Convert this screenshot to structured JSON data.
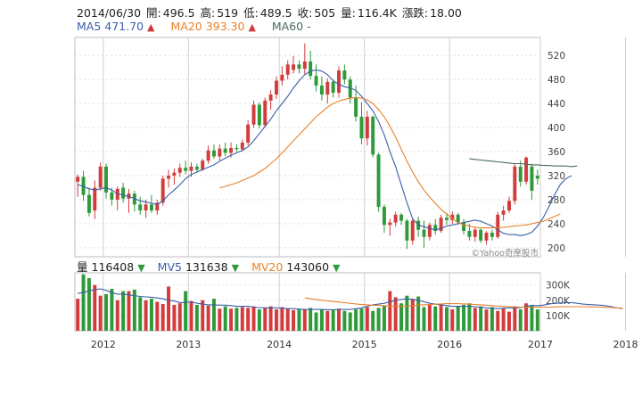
{
  "header": {
    "date": "2014/06/30",
    "open_label": "開:",
    "open": "496.5",
    "high_label": "高:",
    "high": "519",
    "low_label": "低:",
    "low": "489.5",
    "close_label": "收:",
    "close": "505",
    "volume_label": "量:",
    "volume": "116.4K",
    "change_label": "漲跌:",
    "change": "18.00"
  },
  "ma_legend": [
    {
      "name": "MA5",
      "value": "471.70",
      "arrow": "▲",
      "color": "#3a5fa8"
    },
    {
      "name": "MA20",
      "value": "393.30",
      "arrow": "▲",
      "color": "#e8812a"
    },
    {
      "name": "MA60",
      "value": "-",
      "arrow": "",
      "color": "#4a6a5a"
    }
  ],
  "vol_legend": [
    {
      "name": "量",
      "value": "116408",
      "arrow": "▼",
      "color": "#222"
    },
    {
      "name": "MV5",
      "value": "131638",
      "arrow": "▼",
      "color": "#3a5fa8"
    },
    {
      "name": "MV20",
      "value": "143060",
      "arrow": "▼",
      "color": "#e8812a"
    }
  ],
  "watermark": "©Yahoo奇摩股市",
  "colors": {
    "up": "#d23c3c",
    "down": "#2e9a3a",
    "ma5": "#3a5fa8",
    "ma20": "#e8812a",
    "ma60": "#4a6a5a",
    "grid": "#cfcfcf"
  },
  "chart_data": {
    "type": "candlestick",
    "price_axis": {
      "ticks": [
        200,
        240,
        280,
        320,
        360,
        400,
        440,
        480,
        520
      ],
      "ylim": [
        185,
        550
      ]
    },
    "volume_axis": {
      "ticks": [
        "100K",
        "200K",
        "300K"
      ],
      "tick_values": [
        100,
        200,
        300
      ],
      "ylim": [
        0,
        380
      ]
    },
    "x_labels": [
      "2012",
      "2013",
      "2014",
      "2015",
      "2016",
      "2017",
      "2018"
    ],
    "x_label_index": [
      5,
      20,
      36,
      51,
      66,
      82,
      97
    ],
    "candles": [
      {
        "o": 310,
        "h": 322,
        "l": 285,
        "c": 318
      },
      {
        "o": 318,
        "h": 328,
        "l": 278,
        "c": 288
      },
      {
        "o": 288,
        "h": 300,
        "l": 252,
        "c": 258
      },
      {
        "o": 262,
        "h": 312,
        "l": 248,
        "c": 300
      },
      {
        "o": 300,
        "h": 342,
        "l": 295,
        "c": 335
      },
      {
        "o": 335,
        "h": 340,
        "l": 282,
        "c": 292
      },
      {
        "o": 292,
        "h": 300,
        "l": 270,
        "c": 280
      },
      {
        "o": 280,
        "h": 302,
        "l": 262,
        "c": 298
      },
      {
        "o": 300,
        "h": 308,
        "l": 275,
        "c": 282
      },
      {
        "o": 282,
        "h": 298,
        "l": 258,
        "c": 290
      },
      {
        "o": 290,
        "h": 295,
        "l": 260,
        "c": 272
      },
      {
        "o": 272,
        "h": 285,
        "l": 255,
        "c": 262
      },
      {
        "o": 262,
        "h": 280,
        "l": 250,
        "c": 272
      },
      {
        "o": 272,
        "h": 288,
        "l": 258,
        "c": 262
      },
      {
        "o": 262,
        "h": 280,
        "l": 255,
        "c": 275
      },
      {
        "o": 275,
        "h": 320,
        "l": 270,
        "c": 315
      },
      {
        "o": 315,
        "h": 330,
        "l": 300,
        "c": 320
      },
      {
        "o": 320,
        "h": 332,
        "l": 305,
        "c": 325
      },
      {
        "o": 325,
        "h": 340,
        "l": 318,
        "c": 333
      },
      {
        "o": 333,
        "h": 345,
        "l": 322,
        "c": 328
      },
      {
        "o": 328,
        "h": 342,
        "l": 318,
        "c": 335
      },
      {
        "o": 335,
        "h": 340,
        "l": 325,
        "c": 330
      },
      {
        "o": 330,
        "h": 348,
        "l": 328,
        "c": 345
      },
      {
        "o": 345,
        "h": 370,
        "l": 340,
        "c": 362
      },
      {
        "o": 362,
        "h": 372,
        "l": 348,
        "c": 352
      },
      {
        "o": 352,
        "h": 372,
        "l": 345,
        "c": 365
      },
      {
        "o": 365,
        "h": 375,
        "l": 352,
        "c": 358
      },
      {
        "o": 358,
        "h": 375,
        "l": 350,
        "c": 366
      },
      {
        "o": 366,
        "h": 372,
        "l": 360,
        "c": 364
      },
      {
        "o": 364,
        "h": 380,
        "l": 360,
        "c": 375
      },
      {
        "o": 375,
        "h": 412,
        "l": 370,
        "c": 405
      },
      {
        "o": 405,
        "h": 445,
        "l": 400,
        "c": 438
      },
      {
        "o": 438,
        "h": 442,
        "l": 398,
        "c": 404
      },
      {
        "o": 404,
        "h": 450,
        "l": 400,
        "c": 445
      },
      {
        "o": 445,
        "h": 462,
        "l": 430,
        "c": 455
      },
      {
        "o": 455,
        "h": 485,
        "l": 448,
        "c": 478
      },
      {
        "o": 478,
        "h": 502,
        "l": 470,
        "c": 488
      },
      {
        "o": 488,
        "h": 512,
        "l": 480,
        "c": 505
      },
      {
        "o": 496,
        "h": 519,
        "l": 490,
        "c": 505
      },
      {
        "o": 505,
        "h": 512,
        "l": 490,
        "c": 498
      },
      {
        "o": 498,
        "h": 540,
        "l": 488,
        "c": 510
      },
      {
        "o": 510,
        "h": 528,
        "l": 480,
        "c": 486
      },
      {
        "o": 486,
        "h": 505,
        "l": 460,
        "c": 470
      },
      {
        "o": 470,
        "h": 485,
        "l": 445,
        "c": 455
      },
      {
        "o": 455,
        "h": 482,
        "l": 440,
        "c": 476
      },
      {
        "o": 476,
        "h": 480,
        "l": 450,
        "c": 458
      },
      {
        "o": 458,
        "h": 502,
        "l": 450,
        "c": 495
      },
      {
        "o": 495,
        "h": 505,
        "l": 472,
        "c": 480
      },
      {
        "o": 480,
        "h": 485,
        "l": 440,
        "c": 450
      },
      {
        "o": 450,
        "h": 470,
        "l": 410,
        "c": 418
      },
      {
        "o": 418,
        "h": 442,
        "l": 372,
        "c": 382
      },
      {
        "o": 382,
        "h": 428,
        "l": 370,
        "c": 418
      },
      {
        "o": 418,
        "h": 420,
        "l": 350,
        "c": 355
      },
      {
        "o": 355,
        "h": 358,
        "l": 260,
        "c": 268
      },
      {
        "o": 268,
        "h": 272,
        "l": 225,
        "c": 238
      },
      {
        "o": 238,
        "h": 248,
        "l": 220,
        "c": 242
      },
      {
        "o": 242,
        "h": 260,
        "l": 235,
        "c": 255
      },
      {
        "o": 255,
        "h": 258,
        "l": 238,
        "c": 245
      },
      {
        "o": 245,
        "h": 248,
        "l": 198,
        "c": 212
      },
      {
        "o": 212,
        "h": 250,
        "l": 205,
        "c": 245
      },
      {
        "o": 245,
        "h": 252,
        "l": 218,
        "c": 230
      },
      {
        "o": 230,
        "h": 245,
        "l": 200,
        "c": 218
      },
      {
        "o": 218,
        "h": 242,
        "l": 212,
        "c": 238
      },
      {
        "o": 238,
        "h": 248,
        "l": 222,
        "c": 228
      },
      {
        "o": 228,
        "h": 255,
        "l": 225,
        "c": 250
      },
      {
        "o": 250,
        "h": 258,
        "l": 238,
        "c": 246
      },
      {
        "o": 246,
        "h": 260,
        "l": 240,
        "c": 255
      },
      {
        "o": 255,
        "h": 258,
        "l": 238,
        "c": 242
      },
      {
        "o": 242,
        "h": 248,
        "l": 222,
        "c": 228
      },
      {
        "o": 228,
        "h": 240,
        "l": 212,
        "c": 218
      },
      {
        "o": 218,
        "h": 235,
        "l": 210,
        "c": 230
      },
      {
        "o": 230,
        "h": 232,
        "l": 208,
        "c": 212
      },
      {
        "o": 212,
        "h": 228,
        "l": 205,
        "c": 225
      },
      {
        "o": 225,
        "h": 230,
        "l": 212,
        "c": 218
      },
      {
        "o": 218,
        "h": 260,
        "l": 215,
        "c": 255
      },
      {
        "o": 255,
        "h": 270,
        "l": 245,
        "c": 262
      },
      {
        "o": 262,
        "h": 285,
        "l": 258,
        "c": 278
      },
      {
        "o": 278,
        "h": 340,
        "l": 272,
        "c": 335
      },
      {
        "o": 335,
        "h": 345,
        "l": 302,
        "c": 310
      },
      {
        "o": 310,
        "h": 352,
        "l": 305,
        "c": 350
      },
      {
        "o": 335,
        "h": 340,
        "l": 280,
        "c": 295
      },
      {
        "o": 320,
        "h": 330,
        "l": 305,
        "c": 315
      }
    ],
    "ma5": [
      305,
      302,
      298,
      296,
      298,
      300,
      296,
      290,
      288,
      285,
      282,
      278,
      276,
      274,
      272,
      278,
      288,
      296,
      305,
      315,
      322,
      326,
      330,
      334,
      338,
      344,
      349,
      354,
      358,
      362,
      368,
      378,
      390,
      402,
      414,
      428,
      440,
      452,
      466,
      478,
      488,
      494,
      496,
      494,
      488,
      478,
      472,
      468,
      466,
      462,
      452,
      440,
      428,
      410,
      388,
      360,
      335,
      305,
      275,
      248,
      238,
      235,
      232,
      230,
      232,
      236,
      238,
      240,
      242,
      244,
      246,
      244,
      240,
      236,
      230,
      224,
      222,
      222,
      220,
      222,
      226,
      236,
      250,
      268,
      288,
      305,
      315,
      320
    ],
    "ma20_start": 25,
    "ma20": [
      300,
      302,
      305,
      308,
      312,
      316,
      320,
      326,
      332,
      340,
      348,
      358,
      368,
      378,
      388,
      398,
      408,
      418,
      426,
      434,
      440,
      444,
      447,
      449,
      450,
      449,
      446,
      440,
      430,
      418,
      402,
      384,
      364,
      344,
      326,
      310,
      296,
      284,
      274,
      264,
      256,
      248,
      242,
      238,
      236,
      234,
      233,
      233,
      233,
      234,
      234,
      235,
      236,
      237,
      238,
      240,
      242,
      244,
      248,
      252,
      256
    ],
    "ma60_start": 69,
    "ma60": [
      348,
      347,
      346,
      345,
      344,
      343,
      342,
      341,
      340,
      340,
      339,
      338,
      338,
      337,
      337,
      336,
      336,
      336,
      335,
      336
    ],
    "volume": [
      210,
      370,
      345,
      300,
      230,
      240,
      275,
      200,
      260,
      260,
      270,
      220,
      200,
      210,
      190,
      175,
      290,
      170,
      180,
      260,
      195,
      170,
      200,
      165,
      210,
      145,
      160,
      145,
      150,
      155,
      150,
      160,
      140,
      150,
      160,
      140,
      155,
      145,
      135,
      140,
      140,
      150,
      120,
      140,
      130,
      140,
      145,
      130,
      120,
      140,
      145,
      155,
      130,
      150,
      165,
      260,
      220,
      180,
      230,
      210,
      225,
      155,
      170,
      160,
      170,
      155,
      140,
      160,
      170,
      180,
      150,
      160,
      140,
      155,
      130,
      145,
      125,
      160,
      140,
      180,
      170,
      140,
      190,
      200,
      180,
      170,
      190,
      200,
      190,
      165,
      150,
      170,
      175,
      180,
      180,
      160,
      145
    ],
    "mv5": [
      245,
      250,
      262,
      270,
      275,
      265,
      250,
      240,
      240,
      235,
      230,
      225,
      222,
      220,
      215,
      210,
      200,
      195,
      185,
      185,
      190,
      180,
      175,
      170,
      170,
      168,
      168,
      165,
      160,
      160,
      160,
      155,
      152,
      150,
      150,
      150,
      148,
      145,
      145,
      142,
      140,
      140,
      140,
      140,
      138,
      138,
      140,
      140,
      140,
      145,
      150,
      160,
      170,
      175,
      180,
      190,
      200,
      205,
      210,
      205,
      200,
      190,
      180,
      175,
      170,
      165,
      160,
      160,
      160,
      160,
      158,
      155,
      150,
      148,
      145,
      148,
      150,
      150,
      152,
      160,
      165,
      165,
      168,
      175,
      180,
      182,
      185,
      185,
      180,
      175,
      172,
      170,
      168,
      165,
      158,
      150,
      145
    ],
    "mv20_start": 40,
    "mv20": [
      215,
      210,
      205,
      200,
      196,
      192,
      188,
      184,
      180,
      176,
      172,
      170,
      168,
      166,
      164,
      162,
      160,
      160,
      162,
      165,
      168,
      170,
      172,
      174,
      176,
      178,
      178,
      178,
      176,
      175,
      172,
      170,
      168,
      165,
      162,
      160,
      158,
      156,
      155,
      155,
      155,
      155,
      155,
      155,
      156,
      157,
      158,
      158,
      158,
      158,
      157,
      156,
      155,
      154,
      152,
      150,
      148
    ]
  }
}
